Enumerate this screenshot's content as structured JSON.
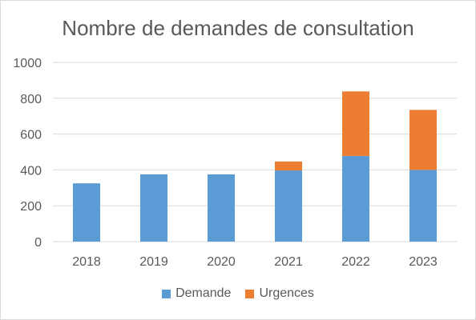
{
  "chart_data": {
    "type": "bar",
    "stacked": true,
    "title": "Nombre de demandes de consultation",
    "categories": [
      "2018",
      "2019",
      "2020",
      "2021",
      "2022",
      "2023"
    ],
    "series": [
      {
        "name": "Demande",
        "color": "#5b9bd5",
        "values": [
          325,
          375,
          375,
          397,
          478,
          400
        ]
      },
      {
        "name": "Urgences",
        "color": "#ed7d31",
        "values": [
          0,
          0,
          0,
          50,
          360,
          335
        ]
      }
    ],
    "ylim": [
      0,
      1000
    ],
    "yticks": [
      "0",
      "200",
      "400",
      "600",
      "800",
      "1000"
    ],
    "grid": true,
    "legend": "bottom"
  }
}
